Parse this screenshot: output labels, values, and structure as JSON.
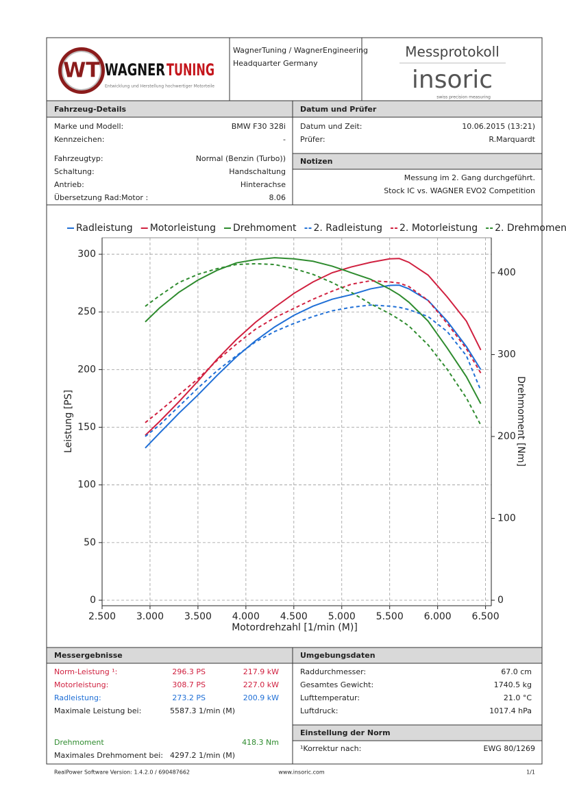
{
  "header": {
    "logo_mark": "WT",
    "logo_word_1": "WAGNER",
    "logo_word_2": "TUNING",
    "logo_tagline": "Entwicklung und Herstellung hochwertiger Motorteile",
    "company": "WagnerTuning / WagnerEngineering",
    "location": "Headquarter Germany",
    "protocol": "Messprotokoll",
    "brand": "insoric",
    "brand_tagline": "swiss precision measuring"
  },
  "vehicle": {
    "title": "Fahrzeug-Details",
    "rows": [
      [
        "Marke und Modell:",
        "BMW F30 328i"
      ],
      [
        "Kennzeichen:",
        "-"
      ],
      [
        "Fahrzeugtyp:",
        "Normal (Benzin (Turbo))"
      ],
      [
        "Schaltung:",
        "Handschaltung"
      ],
      [
        "Antrieb:",
        "Hinterachse"
      ],
      [
        "Übersetzung Rad:Motor :",
        "8.06"
      ]
    ]
  },
  "inspection": {
    "title": "Datum und Prüfer",
    "rows": [
      [
        "Datum und Zeit:",
        "10.06.2015 (13:21)"
      ],
      [
        "Prüfer:",
        "R.Marquardt"
      ]
    ]
  },
  "notes": {
    "title": "Notizen",
    "lines": [
      "Messung im 2. Gang durchgeführt.",
      "Stock IC vs. WAGNER EVO2 Competition"
    ]
  },
  "chart_data": {
    "type": "line",
    "x_label": "Motordrehzahl [1/min (M)]",
    "y_label": "Leistung [PS]",
    "y2_label": "Drehmoment [Nm]",
    "x": [
      2950,
      3100,
      3300,
      3500,
      3700,
      3900,
      4100,
      4300,
      4500,
      4700,
      4900,
      5100,
      5300,
      5500,
      5600,
      5700,
      5900,
      6100,
      6300,
      6450
    ],
    "xlim": [
      2500,
      6560
    ],
    "xticks": [
      {
        "value": 2500,
        "label": "2.500"
      },
      {
        "value": 3000,
        "label": "3.000"
      },
      {
        "value": 3500,
        "label": "3.500"
      },
      {
        "value": 4000,
        "label": "4.000"
      },
      {
        "value": 4500,
        "label": "4.500"
      },
      {
        "value": 5000,
        "label": "5.000"
      },
      {
        "value": 5500,
        "label": "5.500"
      },
      {
        "value": 6000,
        "label": "6.000"
      },
      {
        "value": 6500,
        "label": "6.500"
      }
    ],
    "ylim": [
      -4.75,
      314.3
    ],
    "yticks": [
      0,
      50,
      100,
      150,
      200,
      250,
      300
    ],
    "y2lim": [
      -6.7,
      442.7
    ],
    "y2ticks": [
      0,
      100,
      200,
      300,
      400
    ],
    "grid": true,
    "legend": "top",
    "series": [
      {
        "name": "Radleistung",
        "color": "#1f6fd6",
        "dash": false,
        "axis": "y",
        "values": [
          132,
          145,
          162,
          178,
          195,
          211,
          225,
          237,
          247,
          255,
          261,
          265,
          270,
          273,
          273.2,
          270,
          260,
          242,
          220,
          200
        ]
      },
      {
        "name": "Motorleistung",
        "color": "#d0203f",
        "dash": false,
        "axis": "y",
        "values": [
          143,
          155,
          172,
          190,
          209,
          226,
          241,
          254,
          266,
          276,
          284,
          289,
          293,
          296,
          296.3,
          293,
          282,
          263,
          242,
          217
        ]
      },
      {
        "name": "Drehmoment",
        "color": "#2e8b2e",
        "dash": false,
        "axis": "y2",
        "values": [
          340,
          357,
          376,
          391,
          403,
          412,
          416,
          418.3,
          417,
          414,
          408,
          400,
          392,
          380,
          373,
          364,
          341,
          308,
          273,
          240
        ]
      },
      {
        "name": "2. Radleistung",
        "color": "#1f6fd6",
        "dash": true,
        "axis": "y",
        "values": [
          142,
          152,
          168,
          184,
          199,
          212,
          224,
          233,
          240,
          246,
          251,
          254,
          256,
          255,
          254,
          252,
          246,
          233,
          212,
          182
        ]
      },
      {
        "name": "2. Motorleistung",
        "color": "#d0203f",
        "dash": true,
        "axis": "y",
        "values": [
          154,
          164,
          178,
          192,
          208,
          222,
          235,
          245,
          253,
          261,
          268,
          274,
          277,
          276,
          275,
          272,
          260,
          240,
          218,
          197
        ]
      },
      {
        "name": "2. Drehmoment",
        "color": "#2e8b2e",
        "dash": true,
        "axis": "y2",
        "values": [
          359,
          372,
          388,
          398,
          405,
          410,
          411,
          410,
          405,
          398,
          388,
          376,
          362,
          350,
          343,
          335,
          312,
          282,
          247,
          214
        ]
      }
    ]
  },
  "results": {
    "title": "Messergebnisse",
    "rows": [
      {
        "label": "Norm-Leistung ¹:",
        "values": [
          "296.3 PS",
          "217.9 kW"
        ],
        "color": "#d0203f"
      },
      {
        "label": "Motorleistung:",
        "values": [
          "308.7 PS",
          "227.0 kW"
        ],
        "color": "#d0203f"
      },
      {
        "label": "Radleistung:",
        "values": [
          "273.2 PS",
          "200.9 kW"
        ],
        "color": "#1f6fd6"
      },
      {
        "label": "Maximale Leistung bei:",
        "values": [
          "5587.3 1/min (M)"
        ]
      },
      {
        "label": "Drehmoment",
        "values": [
          "418.3 Nm"
        ],
        "color": "#2e8b2e"
      },
      {
        "label": "Maximales Drehmoment bei:",
        "values": [
          "4297.2 1/min (M)"
        ]
      }
    ]
  },
  "environment": {
    "title": "Umgebungsdaten",
    "rows": [
      [
        "Raddurchmesser:",
        "67.0 cm"
      ],
      [
        "Gesamtes Gewicht:",
        "1740.5 kg"
      ],
      [
        "Lufttemperatur:",
        "21.0 °C"
      ],
      [
        "Luftdruck:",
        "1017.4 hPa"
      ]
    ]
  },
  "norm": {
    "title": "Einstellung der Norm",
    "rows": [
      [
        "¹Korrektur nach:",
        "EWG 80/1269"
      ]
    ]
  },
  "footer": {
    "software": "RealPower Software Version: 1.4.2.0 / 690487662",
    "url": "www.insoric.com",
    "page": "1/1"
  }
}
